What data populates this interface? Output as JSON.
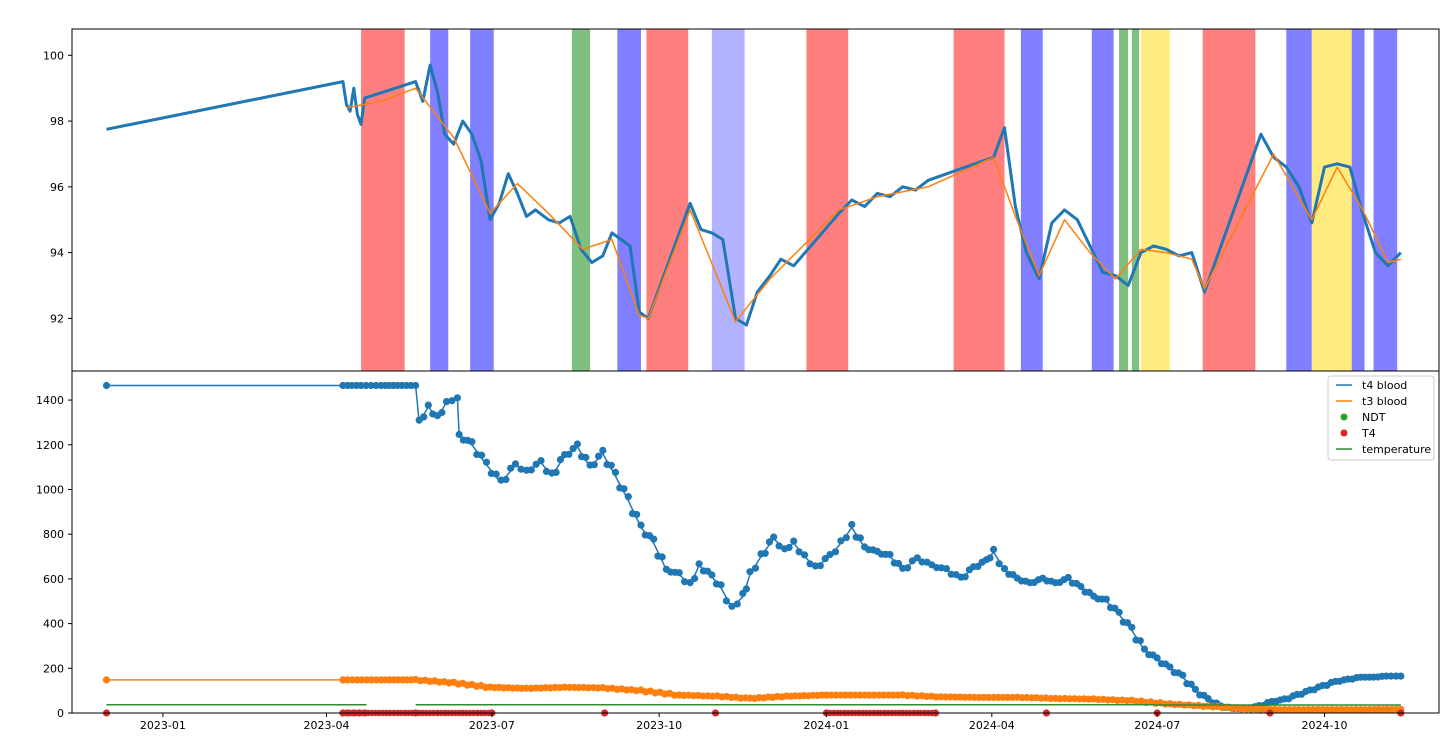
{
  "chart_data": [
    {
      "type": "line",
      "panel": "top",
      "title": "",
      "xlabel": "",
      "ylabel": "",
      "ylim": [
        90.4,
        100.8
      ],
      "yticks": [
        92,
        94,
        96,
        98,
        100
      ],
      "grid": false,
      "series": [
        {
          "color": "#1f77b4",
          "x": [
            "2022-12-01",
            "2023-04-10",
            "2023-04-12",
            "2023-04-14",
            "2023-04-16",
            "2023-04-18",
            "2023-04-20",
            "2023-04-22",
            "2023-05-20",
            "2023-05-24",
            "2023-05-28",
            "2023-06-01",
            "2023-06-05",
            "2023-06-10",
            "2023-06-15",
            "2023-06-20",
            "2023-06-25",
            "2023-06-30",
            "2023-07-05",
            "2023-07-10",
            "2023-07-15",
            "2023-07-20",
            "2023-07-25",
            "2023-08-01",
            "2023-08-07",
            "2023-08-13",
            "2023-08-19",
            "2023-08-25",
            "2023-08-31",
            "2023-09-05",
            "2023-09-10",
            "2023-09-15",
            "2023-09-20",
            "2023-09-25",
            "2023-10-18",
            "2023-10-24",
            "2023-10-30",
            "2023-11-05",
            "2023-11-12",
            "2023-11-18",
            "2023-11-24",
            "2023-12-01",
            "2023-12-07",
            "2023-12-14",
            "2024-01-08",
            "2024-01-15",
            "2024-01-22",
            "2024-01-29",
            "2024-02-05",
            "2024-02-12",
            "2024-02-19",
            "2024-02-26",
            "2024-04-02",
            "2024-04-08",
            "2024-04-14",
            "2024-04-20",
            "2024-04-27",
            "2024-05-04",
            "2024-05-11",
            "2024-05-18",
            "2024-05-25",
            "2024-06-01",
            "2024-06-08",
            "2024-06-15",
            "2024-06-22",
            "2024-06-29",
            "2024-07-06",
            "2024-07-13",
            "2024-07-20",
            "2024-07-27",
            "2024-08-27",
            "2024-09-03",
            "2024-09-10",
            "2024-09-17",
            "2024-09-24",
            "2024-10-01",
            "2024-10-08",
            "2024-10-15",
            "2024-10-22",
            "2024-10-29",
            "2024-11-05",
            "2024-11-12"
          ],
          "values": [
            97.75,
            99.2,
            98.5,
            98.3,
            99.0,
            98.2,
            97.9,
            98.7,
            99.2,
            98.6,
            99.7,
            98.9,
            97.6,
            97.3,
            98.0,
            97.6,
            96.8,
            95.0,
            95.5,
            96.4,
            95.8,
            95.1,
            95.3,
            95.0,
            94.9,
            95.1,
            94.1,
            93.7,
            93.9,
            94.6,
            94.4,
            94.2,
            92.2,
            92.0,
            95.5,
            94.7,
            94.6,
            94.4,
            92.0,
            91.8,
            92.8,
            93.3,
            93.8,
            93.6,
            95.2,
            95.6,
            95.4,
            95.8,
            95.7,
            96.0,
            95.9,
            96.2,
            96.9,
            97.8,
            95.4,
            94.0,
            93.2,
            94.9,
            95.3,
            95.0,
            94.2,
            93.4,
            93.3,
            93.0,
            94.0,
            94.2,
            94.1,
            93.9,
            94.0,
            92.8,
            97.6,
            96.9,
            96.6,
            96.0,
            94.9,
            96.6,
            96.7,
            96.6,
            95.2,
            94.0,
            93.6,
            94.0
          ]
        },
        {
          "color": "#ff7f0e",
          "x": [
            "2023-04-12",
            "2023-05-01",
            "2023-05-20",
            "2023-06-10",
            "2023-06-30",
            "2023-07-15",
            "2023-08-01",
            "2023-08-20",
            "2023-09-05",
            "2023-09-20",
            "2023-09-25",
            "2023-10-18",
            "2023-11-12",
            "2023-12-01",
            "2024-01-08",
            "2024-01-29",
            "2024-02-26",
            "2024-04-02",
            "2024-04-14",
            "2024-04-27",
            "2024-05-11",
            "2024-05-25",
            "2024-06-08",
            "2024-06-22",
            "2024-07-06",
            "2024-07-20",
            "2024-07-27",
            "2024-09-03",
            "2024-09-24",
            "2024-10-08",
            "2024-10-22",
            "2024-11-05",
            "2024-11-12"
          ],
          "values": [
            98.4,
            98.6,
            99.0,
            97.5,
            95.2,
            96.1,
            95.2,
            94.1,
            94.4,
            92.1,
            92.0,
            95.3,
            91.9,
            93.2,
            95.3,
            95.7,
            96.0,
            96.9,
            95.1,
            93.3,
            95.0,
            94.0,
            93.2,
            94.1,
            94.0,
            93.8,
            92.9,
            97.0,
            95.0,
            96.6,
            95.3,
            93.7,
            93.8
          ]
        }
      ],
      "spans": [
        {
          "start": "2023-04-20",
          "end": "2023-05-14",
          "color": "#ff0000",
          "alpha": 0.5
        },
        {
          "start": "2023-05-28",
          "end": "2023-06-07",
          "color": "#0000ff",
          "alpha": 0.5
        },
        {
          "start": "2023-06-19",
          "end": "2023-07-02",
          "color": "#0000ff",
          "alpha": 0.5
        },
        {
          "start": "2023-08-14",
          "end": "2023-08-24",
          "color": "#008000",
          "alpha": 0.5
        },
        {
          "start": "2023-09-08",
          "end": "2023-09-21",
          "color": "#0000ff",
          "alpha": 0.5
        },
        {
          "start": "2023-09-24",
          "end": "2023-10-17",
          "color": "#ff0000",
          "alpha": 0.5
        },
        {
          "start": "2023-10-30",
          "end": "2023-11-17",
          "color": "#0000ff",
          "alpha": 0.3
        },
        {
          "start": "2023-12-21",
          "end": "2024-01-13",
          "color": "#ff0000",
          "alpha": 0.5
        },
        {
          "start": "2024-03-11",
          "end": "2024-04-08",
          "color": "#ff0000",
          "alpha": 0.5
        },
        {
          "start": "2024-04-17",
          "end": "2024-04-29",
          "color": "#0000ff",
          "alpha": 0.5
        },
        {
          "start": "2024-05-26",
          "end": "2024-06-07",
          "color": "#0000ff",
          "alpha": 0.5
        },
        {
          "start": "2024-06-10",
          "end": "2024-06-15",
          "color": "#008000",
          "alpha": 0.5
        },
        {
          "start": "2024-06-17",
          "end": "2024-06-21",
          "color": "#008000",
          "alpha": 0.5
        },
        {
          "start": "2024-06-22",
          "end": "2024-07-08",
          "color": "#ffd700",
          "alpha": 0.5
        },
        {
          "start": "2024-07-26",
          "end": "2024-08-24",
          "color": "#ff0000",
          "alpha": 0.5
        },
        {
          "start": "2024-09-10",
          "end": "2024-09-24",
          "color": "#0000ff",
          "alpha": 0.5
        },
        {
          "start": "2024-09-24",
          "end": "2024-10-16",
          "color": "#ffd700",
          "alpha": 0.5
        },
        {
          "start": "2024-10-16",
          "end": "2024-10-23",
          "color": "#0000ff",
          "alpha": 0.5
        },
        {
          "start": "2024-10-28",
          "end": "2024-11-10",
          "color": "#0000ff",
          "alpha": 0.5
        }
      ]
    },
    {
      "type": "line",
      "panel": "bottom",
      "title": "",
      "xlabel": "",
      "ylabel": "",
      "xlim": [
        "2022-11-12",
        "2024-12-03"
      ],
      "ylim": [
        0,
        1530
      ],
      "yticks": [
        0,
        200,
        400,
        600,
        800,
        1000,
        1200,
        1400
      ],
      "xticks": [
        "2023-01",
        "2023-04",
        "2023-07",
        "2023-10",
        "2024-01",
        "2024-04",
        "2024-07",
        "2024-10"
      ],
      "grid": false,
      "legend_position": "top-right",
      "series": [
        {
          "name": "t4 blood",
          "color": "#1f77b4",
          "markers": true,
          "x": [
            "2022-12-01",
            "2023-04-10",
            "2023-04-20",
            "2023-05-01",
            "2023-05-10",
            "2023-05-20",
            "2023-05-22",
            "2023-05-27",
            "2023-06-01",
            "2023-06-06",
            "2023-06-12",
            "2023-06-13",
            "2023-06-20",
            "2023-06-28",
            "2023-07-06",
            "2023-07-14",
            "2023-07-20",
            "2023-07-28",
            "2023-08-03",
            "2023-08-10",
            "2023-08-17",
            "2023-08-24",
            "2023-08-31",
            "2023-09-07",
            "2023-09-14",
            "2023-09-21",
            "2023-09-28",
            "2023-10-05",
            "2023-10-12",
            "2023-10-18",
            "2023-10-23",
            "2023-10-30",
            "2023-11-04",
            "2023-11-10",
            "2023-11-16",
            "2023-11-20",
            "2023-11-26",
            "2023-12-03",
            "2023-12-09",
            "2023-12-14",
            "2023-12-20",
            "2023-12-26",
            "2024-01-03",
            "2024-01-09",
            "2024-01-15",
            "2024-01-22",
            "2024-01-29",
            "2024-02-05",
            "2024-02-12",
            "2024-02-20",
            "2024-02-28",
            "2024-03-07",
            "2024-03-15",
            "2024-03-22",
            "2024-03-29",
            "2024-04-02",
            "2024-04-08",
            "2024-04-15",
            "2024-04-22",
            "2024-04-29",
            "2024-05-06",
            "2024-05-13",
            "2024-05-20",
            "2024-05-27",
            "2024-06-03",
            "2024-06-10",
            "2024-06-17",
            "2024-06-24",
            "2024-07-01",
            "2024-07-08",
            "2024-07-15",
            "2024-07-22",
            "2024-07-29",
            "2024-08-05",
            "2024-08-12",
            "2024-08-19",
            "2024-08-26",
            "2024-09-02",
            "2024-09-09",
            "2024-09-16",
            "2024-09-23",
            "2024-09-30",
            "2024-10-07",
            "2024-10-14",
            "2024-10-21",
            "2024-10-28",
            "2024-11-04",
            "2024-11-12"
          ],
          "values": [
            1465,
            1465,
            1465,
            1465,
            1465,
            1465,
            1300,
            1370,
            1320,
            1390,
            1410,
            1240,
            1200,
            1110,
            1030,
            1110,
            1080,
            1120,
            1060,
            1150,
            1190,
            1100,
            1160,
            1060,
            950,
            830,
            760,
            640,
            620,
            570,
            660,
            610,
            560,
            470,
            520,
            620,
            700,
            780,
            730,
            760,
            700,
            650,
            700,
            760,
            830,
            740,
            720,
            700,
            640,
            690,
            660,
            640,
            600,
            650,
            680,
            720,
            640,
            600,
            580,
            600,
            580,
            600,
            560,
            520,
            500,
            440,
            370,
            280,
            240,
            200,
            160,
            100,
            60,
            30,
            20,
            20,
            30,
            50,
            60,
            80,
            100,
            120,
            140,
            150,
            160,
            160,
            165,
            165
          ]
        },
        {
          "name": "t3 blood",
          "color": "#ff7f0e",
          "markers": true,
          "x": [
            "2022-12-01",
            "2023-04-10",
            "2023-05-01",
            "2023-05-20",
            "2023-06-10",
            "2023-06-30",
            "2023-07-20",
            "2023-08-10",
            "2023-08-31",
            "2023-09-21",
            "2023-10-12",
            "2023-11-02",
            "2023-11-20",
            "2023-12-10",
            "2024-01-01",
            "2024-01-22",
            "2024-02-12",
            "2024-03-04",
            "2024-03-25",
            "2024-04-15",
            "2024-05-06",
            "2024-05-27",
            "2024-06-17",
            "2024-07-08",
            "2024-07-29",
            "2024-08-19",
            "2024-09-09",
            "2024-09-30",
            "2024-10-21",
            "2024-11-12"
          ],
          "values": [
            148,
            148,
            148,
            148,
            135,
            115,
            110,
            115,
            112,
            100,
            80,
            75,
            65,
            75,
            80,
            80,
            80,
            72,
            70,
            70,
            65,
            62,
            55,
            40,
            30,
            18,
            15,
            15,
            15,
            16
          ]
        },
        {
          "name": "NDT",
          "color": "#2ca02c",
          "points": true,
          "x": [],
          "values": []
        },
        {
          "name": "T4",
          "color": "#d62728",
          "points": true,
          "x": [
            "2022-12-01",
            "2023-04-10",
            "2023-04-13",
            "2023-04-16",
            "2023-04-19",
            "2023-04-22",
            "2023-05-20",
            "2023-07-01",
            "2023-09-01",
            "2023-11-01",
            "2024-01-01",
            "2024-03-01",
            "2024-05-01",
            "2024-07-01",
            "2024-09-01",
            "2024-11-12"
          ],
          "values": [
            0,
            0,
            0,
            0,
            0,
            0,
            0,
            0,
            0,
            0,
            0,
            0,
            0,
            0,
            0,
            0
          ]
        },
        {
          "name": "temperature",
          "color": "#2e8b2e",
          "segments": [
            {
              "x": [
                "2022-12-01",
                "2023-04-23"
              ],
              "values": [
                37,
                37
              ]
            },
            {
              "x": [
                "2023-05-20",
                "2024-06-30"
              ],
              "values": [
                37,
                37
              ]
            },
            {
              "x": [
                "2024-06-30",
                "2024-11-12"
              ],
              "values": [
                36,
                36
              ]
            }
          ]
        }
      ]
    }
  ]
}
